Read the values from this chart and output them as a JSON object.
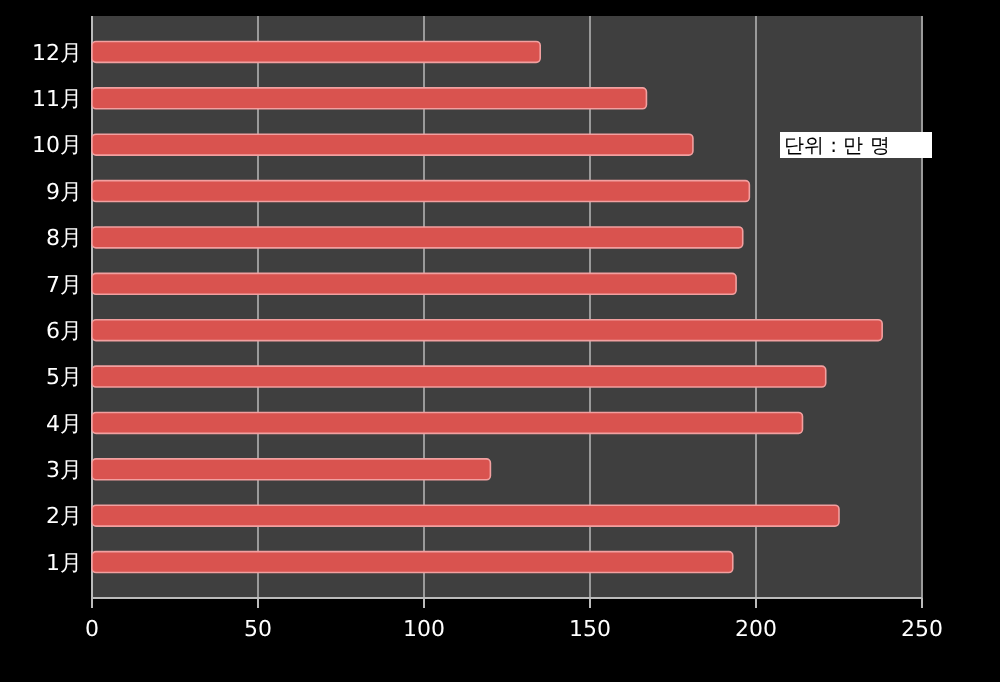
{
  "chart_data": {
    "type": "bar",
    "orientation": "horizontal",
    "categories": [
      "12月",
      "11月",
      "10月",
      "9月",
      "8月",
      "7月",
      "6月",
      "5月",
      "4月",
      "3月",
      "2月",
      "1月"
    ],
    "values": [
      135,
      167,
      181,
      198,
      196,
      194,
      238,
      221,
      214,
      120,
      225,
      193
    ],
    "color": "#d9534f",
    "xlim": [
      0,
      250
    ],
    "xticks": [
      0,
      50,
      100,
      150,
      200,
      250
    ],
    "grid": "x",
    "annotations": [
      "단위 : 만 명"
    ]
  }
}
